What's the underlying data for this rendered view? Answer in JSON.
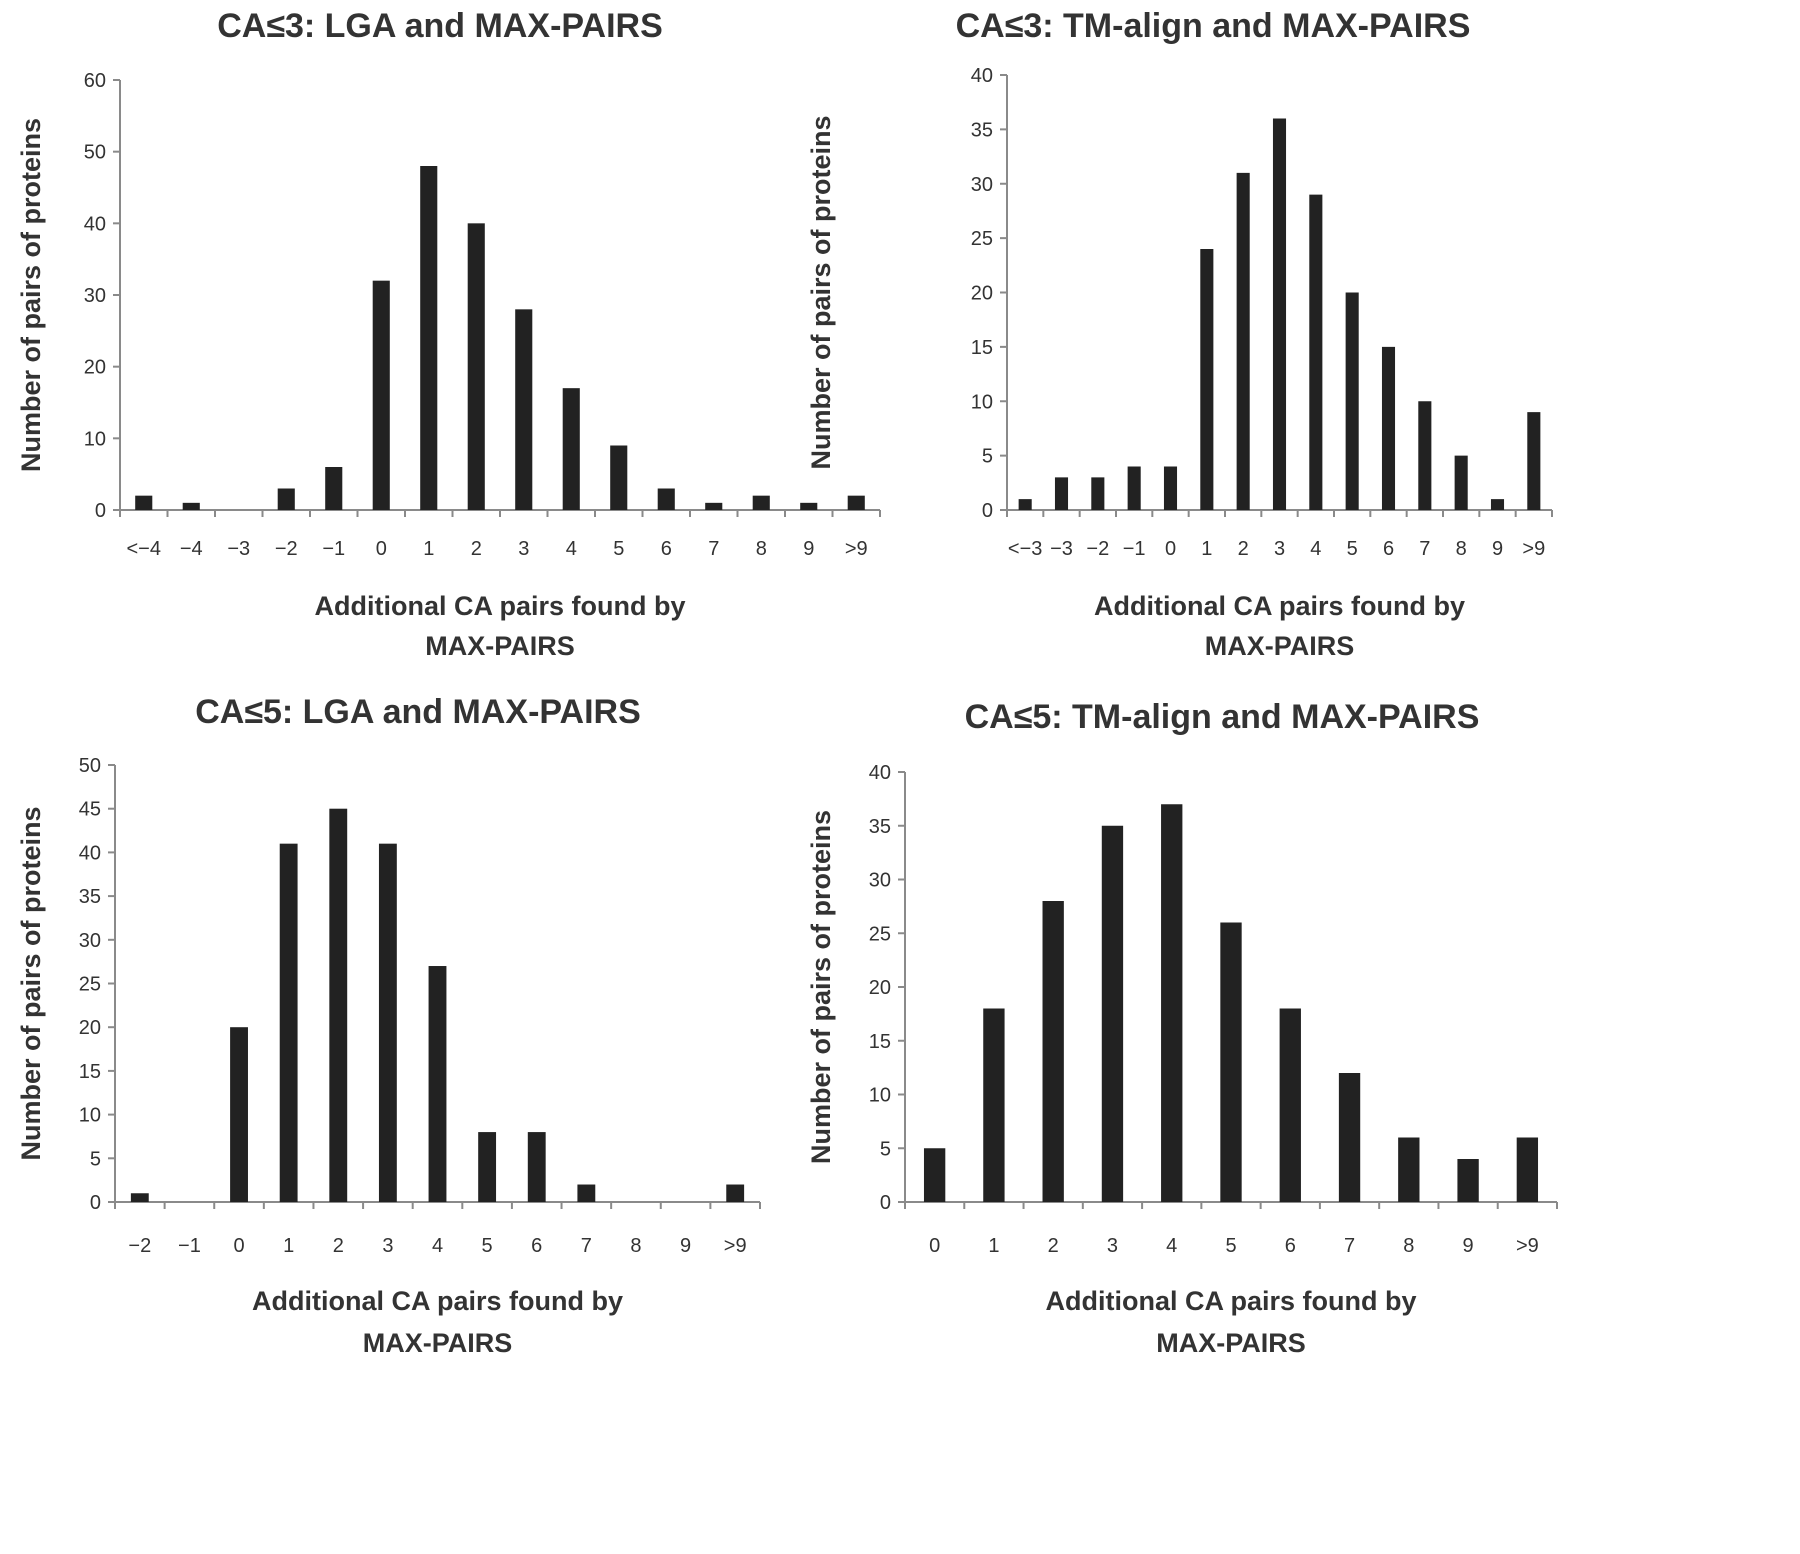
{
  "chart_data": [
    {
      "type": "bar",
      "title": "CA≤3: LGA and MAX-PAIRS",
      "xlabel_line1": "Additional CA pairs found by",
      "xlabel_line2": "MAX-PAIRS",
      "ylabel": "Number of pairs of proteins",
      "categories": [
        "<−4",
        "−4",
        "−3",
        "−2",
        "−1",
        "0",
        "1",
        "2",
        "3",
        "4",
        "5",
        "6",
        "7",
        "8",
        "9",
        ">9"
      ],
      "values": [
        2,
        1,
        0,
        3,
        6,
        32,
        48,
        40,
        28,
        17,
        9,
        3,
        1,
        2,
        1,
        2
      ],
      "ylim": [
        0,
        60
      ],
      "yticks": [
        0,
        10,
        20,
        30,
        40,
        50,
        60
      ],
      "grid": false,
      "bar_color": "#222222"
    },
    {
      "type": "bar",
      "title": "CA≤3: TM-align and MAX-PAIRS",
      "xlabel_line1": "Additional CA pairs found by",
      "xlabel_line2": "MAX-PAIRS",
      "ylabel": "Number of pairs of proteins",
      "categories": [
        "<−3",
        "−3",
        "−2",
        "−1",
        "0",
        "1",
        "2",
        "3",
        "4",
        "5",
        "6",
        "7",
        "8",
        "9",
        ">9"
      ],
      "values": [
        1,
        3,
        3,
        4,
        4,
        24,
        31,
        36,
        29,
        20,
        15,
        10,
        5,
        1,
        9
      ],
      "ylim": [
        0,
        40
      ],
      "yticks": [
        0,
        5,
        10,
        15,
        20,
        25,
        30,
        35,
        40
      ],
      "grid": false,
      "bar_color": "#222222"
    },
    {
      "type": "bar",
      "title": "CA≤5: LGA and MAX-PAIRS",
      "xlabel_line1": "Additional CA pairs found by",
      "xlabel_line2": "MAX-PAIRS",
      "ylabel": "Number of pairs of proteins",
      "categories": [
        "−2",
        "−1",
        "0",
        "1",
        "2",
        "3",
        "4",
        "5",
        "6",
        "7",
        "8",
        "9",
        ">9"
      ],
      "values": [
        1,
        0,
        20,
        41,
        45,
        41,
        27,
        8,
        8,
        2,
        0,
        0,
        2
      ],
      "ylim": [
        0,
        50
      ],
      "yticks": [
        0,
        5,
        10,
        15,
        20,
        25,
        30,
        35,
        40,
        45,
        50
      ],
      "grid": false,
      "bar_color": "#222222"
    },
    {
      "type": "bar",
      "title": "CA≤5: TM-align and MAX-PAIRS",
      "xlabel_line1": "Additional CA pairs found by",
      "xlabel_line2": "MAX-PAIRS",
      "ylabel": "Number of pairs of proteins",
      "categories": [
        "0",
        "1",
        "2",
        "3",
        "4",
        "5",
        "6",
        "7",
        "8",
        "9",
        ">9"
      ],
      "values": [
        5,
        18,
        28,
        35,
        37,
        26,
        18,
        12,
        6,
        4,
        6
      ],
      "ylim": [
        0,
        40
      ],
      "yticks": [
        0,
        5,
        10,
        15,
        20,
        25,
        30,
        35,
        40
      ],
      "grid": false,
      "bar_color": "#222222"
    }
  ]
}
